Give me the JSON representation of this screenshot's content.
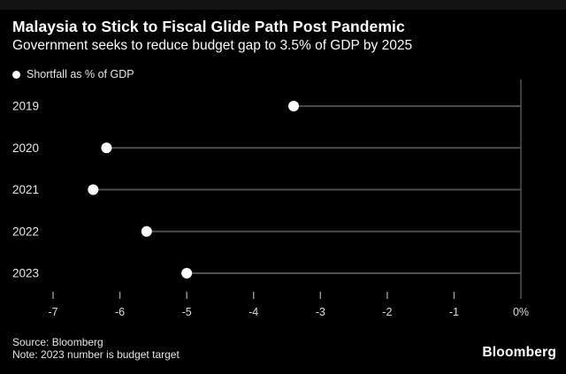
{
  "header": {
    "title": "Malaysia to Stick to Fiscal Glide Path Post Pandemic",
    "subtitle": "Government seeks to reduce budget gap to 3.5% of GDP by 2025"
  },
  "legend": {
    "marker": "filled-circle",
    "label": "Shortfall as % of GDP"
  },
  "footer": {
    "source": "Source: Bloomberg",
    "note": "Note: 2023 number is budget target",
    "logo": "Bloomberg"
  },
  "colors": {
    "background": "#000000",
    "text": "#ffffff",
    "muted_text": "#dcdcdc",
    "category_text": "#e6e6e6",
    "line": "#4d4d4d",
    "axis": "#4d4d4d",
    "tick": "#999999",
    "dot": "#ffffff"
  },
  "chart_data": {
    "type": "scatter",
    "variant": "lollipop-horizontal",
    "title": "Malaysia to Stick to Fiscal Glide Path Post Pandemic",
    "subtitle": "Government seeks to reduce budget gap to 3.5% of GDP by 2025",
    "series": [
      {
        "name": "Shortfall as % of GDP",
        "values": [
          -3.4,
          -6.2,
          -6.4,
          -5.6,
          -5.0
        ]
      }
    ],
    "categories": [
      "2019",
      "2020",
      "2021",
      "2022",
      "2023"
    ],
    "xlabel": "",
    "ylabel": "",
    "xlim": [
      -7,
      0
    ],
    "baseline": 0,
    "xticks": [
      -7,
      -6,
      -5,
      -4,
      -3,
      -2,
      -1,
      0
    ],
    "xtick_labels": [
      "-7",
      "-6",
      "-5",
      "-4",
      "-3",
      "-2",
      "-1",
      "0%"
    ],
    "grid": false,
    "legend_position": "top-left",
    "note": "2023 number is budget target"
  }
}
